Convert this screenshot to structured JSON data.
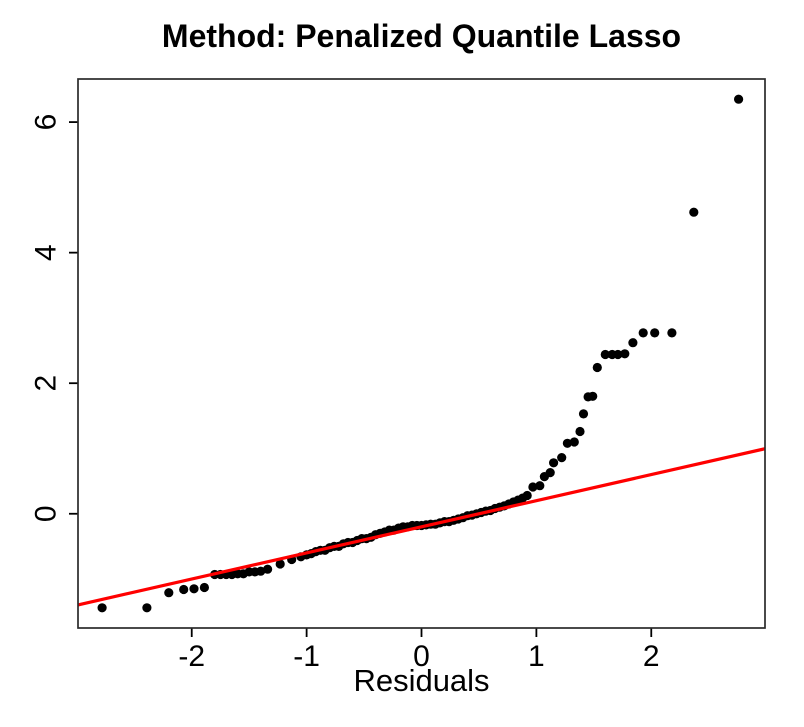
{
  "title": "Method: Penalized Quantile Lasso",
  "chart_data": {
    "type": "scatter",
    "title": "Method: Penalized Quantile Lasso",
    "xlabel": "Residuals",
    "ylabel": "",
    "xlim": [
      -2.99,
      2.99
    ],
    "ylim": [
      -1.75,
      6.66
    ],
    "x_ticks": [
      -2,
      -1,
      0,
      1,
      2
    ],
    "y_ticks": [
      0,
      2,
      4,
      6
    ],
    "grid": false,
    "legend": "none",
    "point_color": "#000000",
    "line_color": "#ff0000",
    "box_color": "#2b2b2b",
    "reference_line": {
      "intercept": -0.2,
      "slope": 0.4
    },
    "points": [
      [
        -2.78,
        -1.44
      ],
      [
        -2.39,
        -1.44
      ],
      [
        -2.2,
        -1.21
      ],
      [
        -2.07,
        -1.16
      ],
      [
        -1.98,
        -1.15
      ],
      [
        -1.89,
        -1.13
      ],
      [
        -1.8,
        -0.93
      ],
      [
        -1.75,
        -0.93
      ],
      [
        -1.7,
        -0.93
      ],
      [
        -1.65,
        -0.93
      ],
      [
        -1.6,
        -0.92
      ],
      [
        -1.55,
        -0.92
      ],
      [
        -1.5,
        -0.89
      ],
      [
        -1.45,
        -0.89
      ],
      [
        -1.4,
        -0.88
      ],
      [
        -1.34,
        -0.85
      ],
      [
        -1.23,
        -0.77
      ],
      [
        -1.13,
        -0.7
      ],
      [
        -1.05,
        -0.66
      ],
      [
        -1.0,
        -0.63
      ],
      [
        -0.96,
        -0.61
      ],
      [
        -0.92,
        -0.58
      ],
      [
        -0.88,
        -0.56
      ],
      [
        -0.84,
        -0.56
      ],
      [
        -0.8,
        -0.52
      ],
      [
        -0.76,
        -0.5
      ],
      [
        -0.72,
        -0.5
      ],
      [
        -0.68,
        -0.46
      ],
      [
        -0.64,
        -0.44
      ],
      [
        -0.6,
        -0.44
      ],
      [
        -0.56,
        -0.41
      ],
      [
        -0.52,
        -0.38
      ],
      [
        -0.48,
        -0.38
      ],
      [
        -0.44,
        -0.36
      ],
      [
        -0.4,
        -0.32
      ],
      [
        -0.36,
        -0.3
      ],
      [
        -0.32,
        -0.28
      ],
      [
        -0.28,
        -0.25
      ],
      [
        -0.24,
        -0.25
      ],
      [
        -0.2,
        -0.22
      ],
      [
        -0.16,
        -0.2
      ],
      [
        -0.12,
        -0.2
      ],
      [
        -0.08,
        -0.18
      ],
      [
        -0.04,
        -0.18
      ],
      [
        0.0,
        -0.18
      ],
      [
        0.04,
        -0.17
      ],
      [
        0.08,
        -0.16
      ],
      [
        0.12,
        -0.16
      ],
      [
        0.16,
        -0.14
      ],
      [
        0.2,
        -0.12
      ],
      [
        0.24,
        -0.12
      ],
      [
        0.28,
        -0.1
      ],
      [
        0.32,
        -0.08
      ],
      [
        0.36,
        -0.06
      ],
      [
        0.4,
        -0.03
      ],
      [
        0.44,
        -0.02
      ],
      [
        0.48,
        0.0
      ],
      [
        0.52,
        0.02
      ],
      [
        0.56,
        0.04
      ],
      [
        0.6,
        0.05
      ],
      [
        0.64,
        0.08
      ],
      [
        0.68,
        0.1
      ],
      [
        0.72,
        0.12
      ],
      [
        0.76,
        0.15
      ],
      [
        0.8,
        0.18
      ],
      [
        0.84,
        0.21
      ],
      [
        0.88,
        0.24
      ],
      [
        0.92,
        0.28
      ],
      [
        0.97,
        0.41
      ],
      [
        1.03,
        0.43
      ],
      [
        1.07,
        0.57
      ],
      [
        1.12,
        0.63
      ],
      [
        1.15,
        0.78
      ],
      [
        1.22,
        0.86
      ],
      [
        1.27,
        1.08
      ],
      [
        1.33,
        1.1
      ],
      [
        1.38,
        1.26
      ],
      [
        1.41,
        1.53
      ],
      [
        1.45,
        1.79
      ],
      [
        1.49,
        1.8
      ],
      [
        1.53,
        2.24
      ],
      [
        1.6,
        2.44
      ],
      [
        1.66,
        2.44
      ],
      [
        1.71,
        2.44
      ],
      [
        1.77,
        2.45
      ],
      [
        1.84,
        2.62
      ],
      [
        1.93,
        2.77
      ],
      [
        2.03,
        2.77
      ],
      [
        2.18,
        2.77
      ],
      [
        2.37,
        4.62
      ],
      [
        2.76,
        6.35
      ]
    ]
  }
}
